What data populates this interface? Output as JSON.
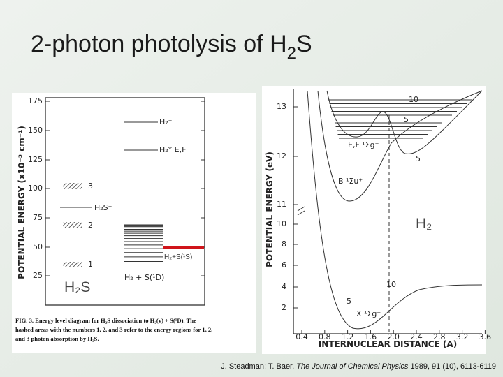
{
  "title": {
    "main": "2-photon photolysis of H",
    "sub": "2",
    "end": "S"
  },
  "left_figure": {
    "y_axis_label": "POTENTIAL ENERGY (x10⁻³ cm⁻¹)",
    "y_ticks": [
      "175",
      "150",
      "125",
      "100",
      "75",
      "50",
      "25"
    ],
    "labels": {
      "band_3": "3",
      "band_2": "2",
      "band_1": "1",
      "ion": "H₂S⁺",
      "h2_ion": "H₂⁺",
      "h2_ef": "H₂* E,F",
      "h2_s1d": "H₂ + S(¹D)"
    },
    "caption": [
      "FIG. 3. Energy level diagram for H₂S dissociation to H₂(v) + S(¹D). The",
      "hashed areas with the numbers 1, 2, and 3 refer to the energy regions for 1, 2,",
      "and 3 photon absorption by H₂S."
    ]
  },
  "right_figure": {
    "y_axis_label": "POTENTIAL ENERGY (eV)",
    "x_axis_label": "INTERNUCLEAR DISTANCE (A)",
    "y_ticks_upper": [
      "13",
      "12",
      "11"
    ],
    "y_ticks_lower": [
      "10",
      "8",
      "6",
      "4",
      "2"
    ],
    "x_ticks": [
      "0.4",
      "0.8",
      "1.2",
      "1.6",
      "2.0",
      "2.4",
      "2.8",
      "3.2",
      "3.6"
    ],
    "labels": {
      "ef_state": "E,F ¹Σg⁺",
      "b_state": "B ¹Σu⁺",
      "x_state": "X ¹Σg⁺",
      "v10_top": "10",
      "v5_top": "5",
      "v5_b": "5",
      "v10_x": "10",
      "v5_x": "5"
    }
  },
  "overlays": {
    "h2_s1s": "H₂+S(¹S)",
    "h2s": "H₂S",
    "h2": "H₂"
  },
  "citation": {
    "authors": "J. Steadman; T. Baer, ",
    "journal": "The Journal of Chemical Physics",
    "details": " 1989, 91 (10), 6113-6119"
  }
}
